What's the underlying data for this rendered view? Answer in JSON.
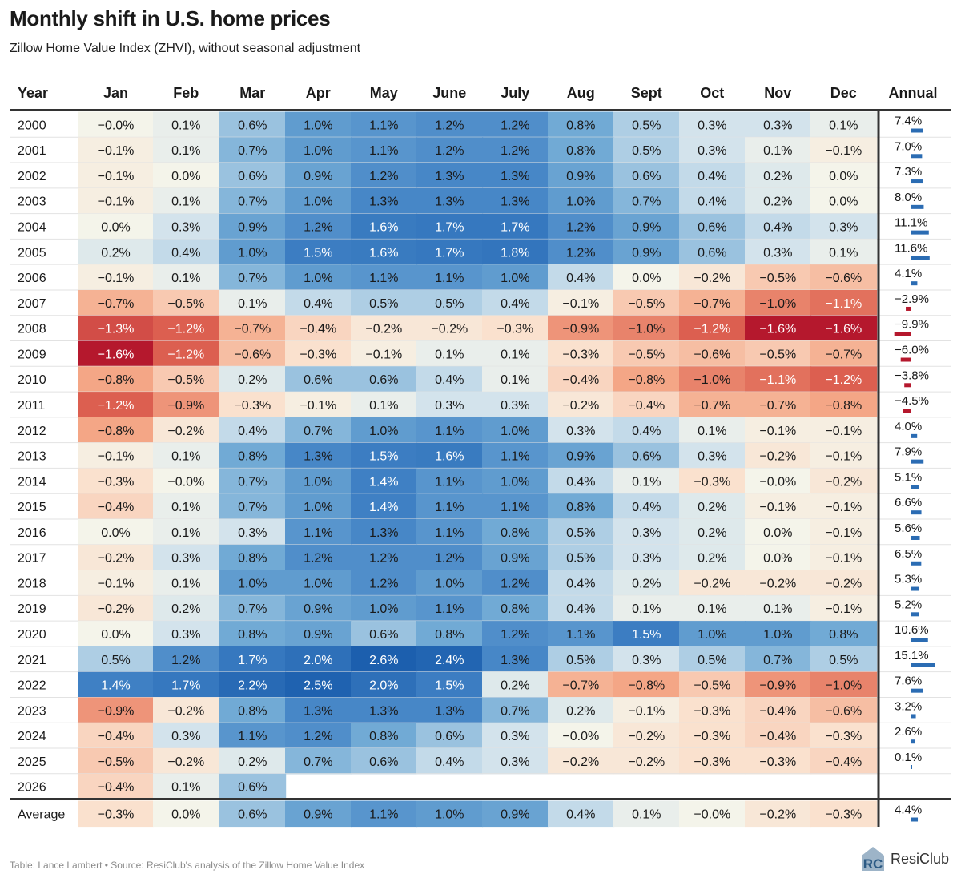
{
  "title": "Monthly shift in U.S. home prices",
  "subtitle": "Zillow Home Value Index (ZHVI), without seasonal adjustment",
  "footer": "Table: Lance Lambert • Source: ResiClub's analysis of the Zillow Home Value Index",
  "logo": {
    "text": "ResiClub",
    "mark": "RC",
    "icon": "resiclub-logo-icon"
  },
  "colors": {
    "positive_max": "#1c5fae",
    "neutral": "#f4f4ea",
    "negative_max": "#b5182d",
    "annual_positive": "#2b6cb3",
    "annual_negative": "#b5182d"
  },
  "chart_data": {
    "type": "heatmap",
    "title": "Monthly shift in U.S. home prices",
    "row_header": "Year",
    "columns": [
      "Jan",
      "Feb",
      "Mar",
      "Apr",
      "May",
      "June",
      "July",
      "Aug",
      "Sept",
      "Oct",
      "Nov",
      "Dec"
    ],
    "annual_header": "Annual",
    "value_suffix": "%",
    "color_range": [
      -1.6,
      2.6
    ],
    "rows": [
      {
        "year": "2000",
        "labels": [
          "−0.0%",
          "0.1%",
          "0.6%",
          "1.0%",
          "1.1%",
          "1.2%",
          "1.2%",
          "0.8%",
          "0.5%",
          "0.3%",
          "0.3%",
          "0.1%"
        ],
        "values": [
          0,
          0.1,
          0.6,
          1.0,
          1.1,
          1.2,
          1.2,
          0.8,
          0.5,
          0.3,
          0.3,
          0.1
        ],
        "annual_label": "7.4%",
        "annual": 7.4
      },
      {
        "year": "2001",
        "labels": [
          "−0.1%",
          "0.1%",
          "0.7%",
          "1.0%",
          "1.1%",
          "1.2%",
          "1.2%",
          "0.8%",
          "0.5%",
          "0.3%",
          "0.1%",
          "−0.1%"
        ],
        "values": [
          -0.1,
          0.1,
          0.7,
          1.0,
          1.1,
          1.2,
          1.2,
          0.8,
          0.5,
          0.3,
          0.1,
          -0.1
        ],
        "annual_label": "7.0%",
        "annual": 7.0
      },
      {
        "year": "2002",
        "labels": [
          "−0.1%",
          "0.0%",
          "0.6%",
          "0.9%",
          "1.2%",
          "1.3%",
          "1.3%",
          "0.9%",
          "0.6%",
          "0.4%",
          "0.2%",
          "0.0%"
        ],
        "values": [
          -0.1,
          0,
          0.6,
          0.9,
          1.2,
          1.3,
          1.3,
          0.9,
          0.6,
          0.4,
          0.2,
          0
        ],
        "annual_label": "7.3%",
        "annual": 7.3
      },
      {
        "year": "2003",
        "labels": [
          "−0.1%",
          "0.1%",
          "0.7%",
          "1.0%",
          "1.3%",
          "1.3%",
          "1.3%",
          "1.0%",
          "0.7%",
          "0.4%",
          "0.2%",
          "0.0%"
        ],
        "values": [
          -0.1,
          0.1,
          0.7,
          1.0,
          1.3,
          1.3,
          1.3,
          1.0,
          0.7,
          0.4,
          0.2,
          0
        ],
        "annual_label": "8.0%",
        "annual": 8.0
      },
      {
        "year": "2004",
        "labels": [
          "0.0%",
          "0.3%",
          "0.9%",
          "1.2%",
          "1.6%",
          "1.7%",
          "1.7%",
          "1.2%",
          "0.9%",
          "0.6%",
          "0.4%",
          "0.3%"
        ],
        "values": [
          0,
          0.3,
          0.9,
          1.2,
          1.6,
          1.7,
          1.7,
          1.2,
          0.9,
          0.6,
          0.4,
          0.3
        ],
        "annual_label": "11.1%",
        "annual": 11.1
      },
      {
        "year": "2005",
        "labels": [
          "0.2%",
          "0.4%",
          "1.0%",
          "1.5%",
          "1.6%",
          "1.7%",
          "1.8%",
          "1.2%",
          "0.9%",
          "0.6%",
          "0.3%",
          "0.1%"
        ],
        "values": [
          0.2,
          0.4,
          1.0,
          1.5,
          1.6,
          1.7,
          1.8,
          1.2,
          0.9,
          0.6,
          0.3,
          0.1
        ],
        "annual_label": "11.6%",
        "annual": 11.6
      },
      {
        "year": "2006",
        "labels": [
          "−0.1%",
          "0.1%",
          "0.7%",
          "1.0%",
          "1.1%",
          "1.1%",
          "1.0%",
          "0.4%",
          "0.0%",
          "−0.2%",
          "−0.5%",
          "−0.6%"
        ],
        "values": [
          -0.1,
          0.1,
          0.7,
          1.0,
          1.1,
          1.1,
          1.0,
          0.4,
          0,
          -0.2,
          -0.5,
          -0.6
        ],
        "annual_label": "4.1%",
        "annual": 4.1
      },
      {
        "year": "2007",
        "labels": [
          "−0.7%",
          "−0.5%",
          "0.1%",
          "0.4%",
          "0.5%",
          "0.5%",
          "0.4%",
          "−0.1%",
          "−0.5%",
          "−0.7%",
          "−1.0%",
          "−1.1%"
        ],
        "values": [
          -0.7,
          -0.5,
          0.1,
          0.4,
          0.5,
          0.5,
          0.4,
          -0.1,
          -0.5,
          -0.7,
          -1.0,
          -1.1
        ],
        "annual_label": "−2.9%",
        "annual": -2.9
      },
      {
        "year": "2008",
        "labels": [
          "−1.3%",
          "−1.2%",
          "−0.7%",
          "−0.4%",
          "−0.2%",
          "−0.2%",
          "−0.3%",
          "−0.9%",
          "−1.0%",
          "−1.2%",
          "−1.6%",
          "−1.6%"
        ],
        "values": [
          -1.3,
          -1.2,
          -0.7,
          -0.4,
          -0.2,
          -0.2,
          -0.3,
          -0.9,
          -1.0,
          -1.2,
          -1.6,
          -1.6
        ],
        "annual_label": "−9.9%",
        "annual": -9.9
      },
      {
        "year": "2009",
        "labels": [
          "−1.6%",
          "−1.2%",
          "−0.6%",
          "−0.3%",
          "−0.1%",
          "0.1%",
          "0.1%",
          "−0.3%",
          "−0.5%",
          "−0.6%",
          "−0.5%",
          "−0.7%"
        ],
        "values": [
          -1.6,
          -1.2,
          -0.6,
          -0.3,
          -0.1,
          0.1,
          0.1,
          -0.3,
          -0.5,
          -0.6,
          -0.5,
          -0.7
        ],
        "annual_label": "−6.0%",
        "annual": -6.0
      },
      {
        "year": "2010",
        "labels": [
          "−0.8%",
          "−0.5%",
          "0.2%",
          "0.6%",
          "0.6%",
          "0.4%",
          "0.1%",
          "−0.4%",
          "−0.8%",
          "−1.0%",
          "−1.1%",
          "−1.2%"
        ],
        "values": [
          -0.8,
          -0.5,
          0.2,
          0.6,
          0.6,
          0.4,
          0.1,
          -0.4,
          -0.8,
          -1.0,
          -1.1,
          -1.2
        ],
        "annual_label": "−3.8%",
        "annual": -3.8
      },
      {
        "year": "2011",
        "labels": [
          "−1.2%",
          "−0.9%",
          "−0.3%",
          "−0.1%",
          "0.1%",
          "0.3%",
          "0.3%",
          "−0.2%",
          "−0.4%",
          "−0.7%",
          "−0.7%",
          "−0.8%"
        ],
        "values": [
          -1.2,
          -0.9,
          -0.3,
          -0.1,
          0.1,
          0.3,
          0.3,
          -0.2,
          -0.4,
          -0.7,
          -0.7,
          -0.8
        ],
        "annual_label": "−4.5%",
        "annual": -4.5
      },
      {
        "year": "2012",
        "labels": [
          "−0.8%",
          "−0.2%",
          "0.4%",
          "0.7%",
          "1.0%",
          "1.1%",
          "1.0%",
          "0.3%",
          "0.4%",
          "0.1%",
          "−0.1%",
          "−0.1%"
        ],
        "values": [
          -0.8,
          -0.2,
          0.4,
          0.7,
          1.0,
          1.1,
          1.0,
          0.3,
          0.4,
          0.1,
          -0.1,
          -0.1
        ],
        "annual_label": "4.0%",
        "annual": 4.0
      },
      {
        "year": "2013",
        "labels": [
          "−0.1%",
          "0.1%",
          "0.8%",
          "1.3%",
          "1.5%",
          "1.6%",
          "1.1%",
          "0.9%",
          "0.6%",
          "0.3%",
          "−0.2%",
          "−0.1%"
        ],
        "values": [
          -0.1,
          0.1,
          0.8,
          1.3,
          1.5,
          1.6,
          1.1,
          0.9,
          0.6,
          0.3,
          -0.2,
          -0.1
        ],
        "annual_label": "7.9%",
        "annual": 7.9
      },
      {
        "year": "2014",
        "labels": [
          "−0.3%",
          "−0.0%",
          "0.7%",
          "1.0%",
          "1.4%",
          "1.1%",
          "1.0%",
          "0.4%",
          "0.1%",
          "−0.3%",
          "−0.0%",
          "−0.2%"
        ],
        "values": [
          -0.3,
          0,
          0.7,
          1.0,
          1.4,
          1.1,
          1.0,
          0.4,
          0.1,
          -0.3,
          0,
          -0.2
        ],
        "annual_label": "5.1%",
        "annual": 5.1
      },
      {
        "year": "2015",
        "labels": [
          "−0.4%",
          "0.1%",
          "0.7%",
          "1.0%",
          "1.4%",
          "1.1%",
          "1.1%",
          "0.8%",
          "0.4%",
          "0.2%",
          "−0.1%",
          "−0.1%"
        ],
        "values": [
          -0.4,
          0.1,
          0.7,
          1.0,
          1.4,
          1.1,
          1.1,
          0.8,
          0.4,
          0.2,
          -0.1,
          -0.1
        ],
        "annual_label": "6.6%",
        "annual": 6.6
      },
      {
        "year": "2016",
        "labels": [
          "0.0%",
          "0.1%",
          "0.3%",
          "1.1%",
          "1.3%",
          "1.1%",
          "0.8%",
          "0.5%",
          "0.3%",
          "0.2%",
          "0.0%",
          "−0.1%"
        ],
        "values": [
          0,
          0.1,
          0.3,
          1.1,
          1.3,
          1.1,
          0.8,
          0.5,
          0.3,
          0.2,
          0,
          -0.1
        ],
        "annual_label": "5.6%",
        "annual": 5.6
      },
      {
        "year": "2017",
        "labels": [
          "−0.2%",
          "0.3%",
          "0.8%",
          "1.2%",
          "1.2%",
          "1.2%",
          "0.9%",
          "0.5%",
          "0.3%",
          "0.2%",
          "0.0%",
          "−0.1%"
        ],
        "values": [
          -0.2,
          0.3,
          0.8,
          1.2,
          1.2,
          1.2,
          0.9,
          0.5,
          0.3,
          0.2,
          0,
          -0.1
        ],
        "annual_label": "6.5%",
        "annual": 6.5
      },
      {
        "year": "2018",
        "labels": [
          "−0.1%",
          "0.1%",
          "1.0%",
          "1.0%",
          "1.2%",
          "1.0%",
          "1.2%",
          "0.4%",
          "0.2%",
          "−0.2%",
          "−0.2%",
          "−0.2%"
        ],
        "values": [
          -0.1,
          0.1,
          1.0,
          1.0,
          1.2,
          1.0,
          1.2,
          0.4,
          0.2,
          -0.2,
          -0.2,
          -0.2
        ],
        "annual_label": "5.3%",
        "annual": 5.3
      },
      {
        "year": "2019",
        "labels": [
          "−0.2%",
          "0.2%",
          "0.7%",
          "0.9%",
          "1.0%",
          "1.1%",
          "0.8%",
          "0.4%",
          "0.1%",
          "0.1%",
          "0.1%",
          "−0.1%"
        ],
        "values": [
          -0.2,
          0.2,
          0.7,
          0.9,
          1.0,
          1.1,
          0.8,
          0.4,
          0.1,
          0.1,
          0.1,
          -0.1
        ],
        "annual_label": "5.2%",
        "annual": 5.2
      },
      {
        "year": "2020",
        "labels": [
          "0.0%",
          "0.3%",
          "0.8%",
          "0.9%",
          "0.6%",
          "0.8%",
          "1.2%",
          "1.1%",
          "1.5%",
          "1.0%",
          "1.0%",
          "0.8%"
        ],
        "values": [
          0,
          0.3,
          0.8,
          0.9,
          0.6,
          0.8,
          1.2,
          1.1,
          1.5,
          1.0,
          1.0,
          0.8
        ],
        "annual_label": "10.6%",
        "annual": 10.6
      },
      {
        "year": "2021",
        "labels": [
          "0.5%",
          "1.2%",
          "1.7%",
          "2.0%",
          "2.6%",
          "2.4%",
          "1.3%",
          "0.5%",
          "0.3%",
          "0.5%",
          "0.7%",
          "0.5%"
        ],
        "values": [
          0.5,
          1.2,
          1.7,
          2.0,
          2.6,
          2.4,
          1.3,
          0.5,
          0.3,
          0.5,
          0.7,
          0.5
        ],
        "annual_label": "15.1%",
        "annual": 15.1
      },
      {
        "year": "2022",
        "labels": [
          "1.4%",
          "1.7%",
          "2.2%",
          "2.5%",
          "2.0%",
          "1.5%",
          "0.2%",
          "−0.7%",
          "−0.8%",
          "−0.5%",
          "−0.9%",
          "−1.0%"
        ],
        "values": [
          1.4,
          1.7,
          2.2,
          2.5,
          2.0,
          1.5,
          0.2,
          -0.7,
          -0.8,
          -0.5,
          -0.9,
          -1.0
        ],
        "annual_label": "7.6%",
        "annual": 7.6
      },
      {
        "year": "2023",
        "labels": [
          "−0.9%",
          "−0.2%",
          "0.8%",
          "1.3%",
          "1.3%",
          "1.3%",
          "0.7%",
          "0.2%",
          "−0.1%",
          "−0.3%",
          "−0.4%",
          "−0.6%"
        ],
        "values": [
          -0.9,
          -0.2,
          0.8,
          1.3,
          1.3,
          1.3,
          0.7,
          0.2,
          -0.1,
          -0.3,
          -0.4,
          -0.6
        ],
        "annual_label": "3.2%",
        "annual": 3.2
      },
      {
        "year": "2024",
        "labels": [
          "−0.4%",
          "0.3%",
          "1.1%",
          "1.2%",
          "0.8%",
          "0.6%",
          "0.3%",
          "−0.0%",
          "−0.2%",
          "−0.3%",
          "−0.4%",
          "−0.3%"
        ],
        "values": [
          -0.4,
          0.3,
          1.1,
          1.2,
          0.8,
          0.6,
          0.3,
          0,
          -0.2,
          -0.3,
          -0.4,
          -0.3
        ],
        "annual_label": "2.6%",
        "annual": 2.6
      },
      {
        "year": "2025",
        "labels": [
          "−0.5%",
          "−0.2%",
          "0.2%",
          "0.7%",
          "0.6%",
          "0.4%",
          "0.3%",
          "−0.2%",
          "−0.2%",
          "−0.3%",
          "−0.3%",
          "−0.4%"
        ],
        "values": [
          -0.5,
          -0.2,
          0.2,
          0.7,
          0.6,
          0.4,
          0.3,
          -0.2,
          -0.2,
          -0.3,
          -0.3,
          -0.4
        ],
        "annual_label": "0.1%",
        "annual": 0.1
      },
      {
        "year": "2026",
        "labels": [
          "−0.4%",
          "0.1%",
          "0.6%"
        ],
        "values": [
          -0.4,
          0.1,
          0.6
        ],
        "annual_label": "",
        "annual": null
      }
    ],
    "average": {
      "year": "Average",
      "labels": [
        "−0.3%",
        "0.0%",
        "0.6%",
        "0.9%",
        "1.1%",
        "1.0%",
        "0.9%",
        "0.4%",
        "0.1%",
        "−0.0%",
        "−0.2%",
        "−0.3%"
      ],
      "values": [
        -0.3,
        0,
        0.6,
        0.9,
        1.1,
        1.0,
        0.9,
        0.4,
        0.1,
        0,
        -0.2,
        -0.3
      ],
      "annual_label": "4.4%",
      "annual": 4.4
    }
  }
}
